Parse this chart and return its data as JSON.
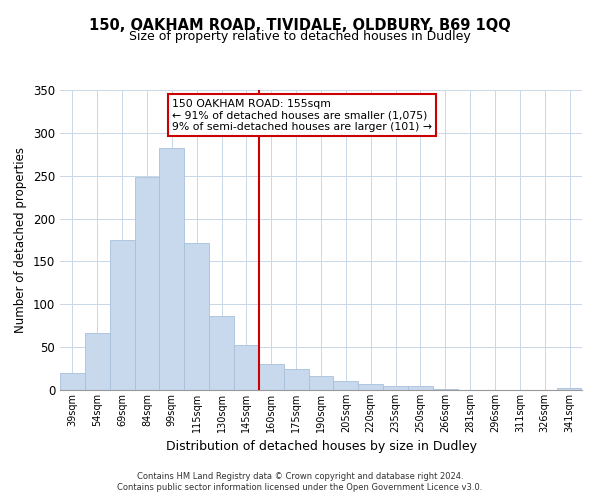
{
  "title_line1": "150, OAKHAM ROAD, TIVIDALE, OLDBURY, B69 1QQ",
  "title_line2": "Size of property relative to detached houses in Dudley",
  "xlabel": "Distribution of detached houses by size in Dudley",
  "ylabel": "Number of detached properties",
  "bar_labels": [
    "39sqm",
    "54sqm",
    "69sqm",
    "84sqm",
    "99sqm",
    "115sqm",
    "130sqm",
    "145sqm",
    "160sqm",
    "175sqm",
    "190sqm",
    "205sqm",
    "220sqm",
    "235sqm",
    "250sqm",
    "266sqm",
    "281sqm",
    "296sqm",
    "311sqm",
    "326sqm",
    "341sqm"
  ],
  "bar_values": [
    20,
    67,
    175,
    248,
    282,
    171,
    86,
    52,
    30,
    25,
    16,
    10,
    7,
    5,
    5,
    1,
    0,
    0,
    0,
    0,
    2
  ],
  "bar_color": "#c8d9ee",
  "bar_edge_color": "#a8c0dc",
  "vline_color": "#cc0000",
  "annotation_title": "150 OAKHAM ROAD: 155sqm",
  "annotation_line1": "← 91% of detached houses are smaller (1,075)",
  "annotation_line2": "9% of semi-detached houses are larger (101) →",
  "annotation_box_color": "#ffffff",
  "annotation_box_edge_color": "#cc0000",
  "ylim": [
    0,
    350
  ],
  "yticks": [
    0,
    50,
    100,
    150,
    200,
    250,
    300,
    350
  ],
  "footer_line1": "Contains HM Land Registry data © Crown copyright and database right 2024.",
  "footer_line2": "Contains public sector information licensed under the Open Government Licence v3.0."
}
